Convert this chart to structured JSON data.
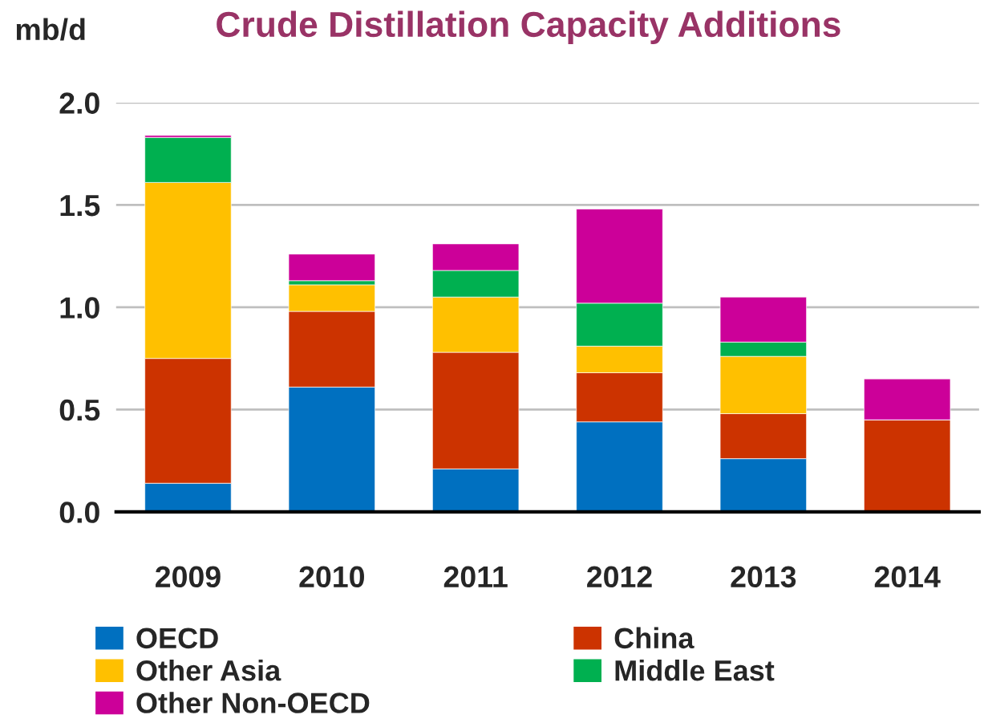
{
  "chart_data": {
    "type": "bar",
    "title": "Crude Distillation Capacity Additions",
    "ylabel": "mb/d",
    "categories": [
      "2009",
      "2010",
      "2011",
      "2012",
      "2013",
      "2014"
    ],
    "stacked": true,
    "ylim": [
      0,
      2.0
    ],
    "yticks": [
      {
        "value": 0,
        "label": "0.0"
      },
      {
        "value": 0.5,
        "label": "0.5"
      },
      {
        "value": 1.0,
        "label": "1.0"
      },
      {
        "value": 1.5,
        "label": "1.5"
      },
      {
        "value": 2.0,
        "label": "2.0"
      }
    ],
    "grid": "y",
    "legend": "bottom",
    "series": [
      {
        "name": "OECD",
        "color": "#0070c0",
        "values": [
          0.14,
          0.61,
          0.21,
          0.44,
          0.26,
          0
        ]
      },
      {
        "name": "China",
        "color": "#cc3300",
        "values": [
          0.61,
          0.37,
          0.57,
          0.24,
          0.22,
          0.45
        ]
      },
      {
        "name": "Other Asia",
        "color": "#ffc000",
        "values": [
          0.86,
          0.13,
          0.27,
          0.13,
          0.28,
          0
        ]
      },
      {
        "name": "Middle East",
        "color": "#00b050",
        "values": [
          0.22,
          0.02,
          0.13,
          0.21,
          0.07,
          0
        ]
      },
      {
        "name": "Other Non-OECD",
        "color": "#cc0099",
        "values": [
          0.01,
          0.13,
          0.13,
          0.46,
          0.22,
          0.2
        ]
      }
    ]
  }
}
